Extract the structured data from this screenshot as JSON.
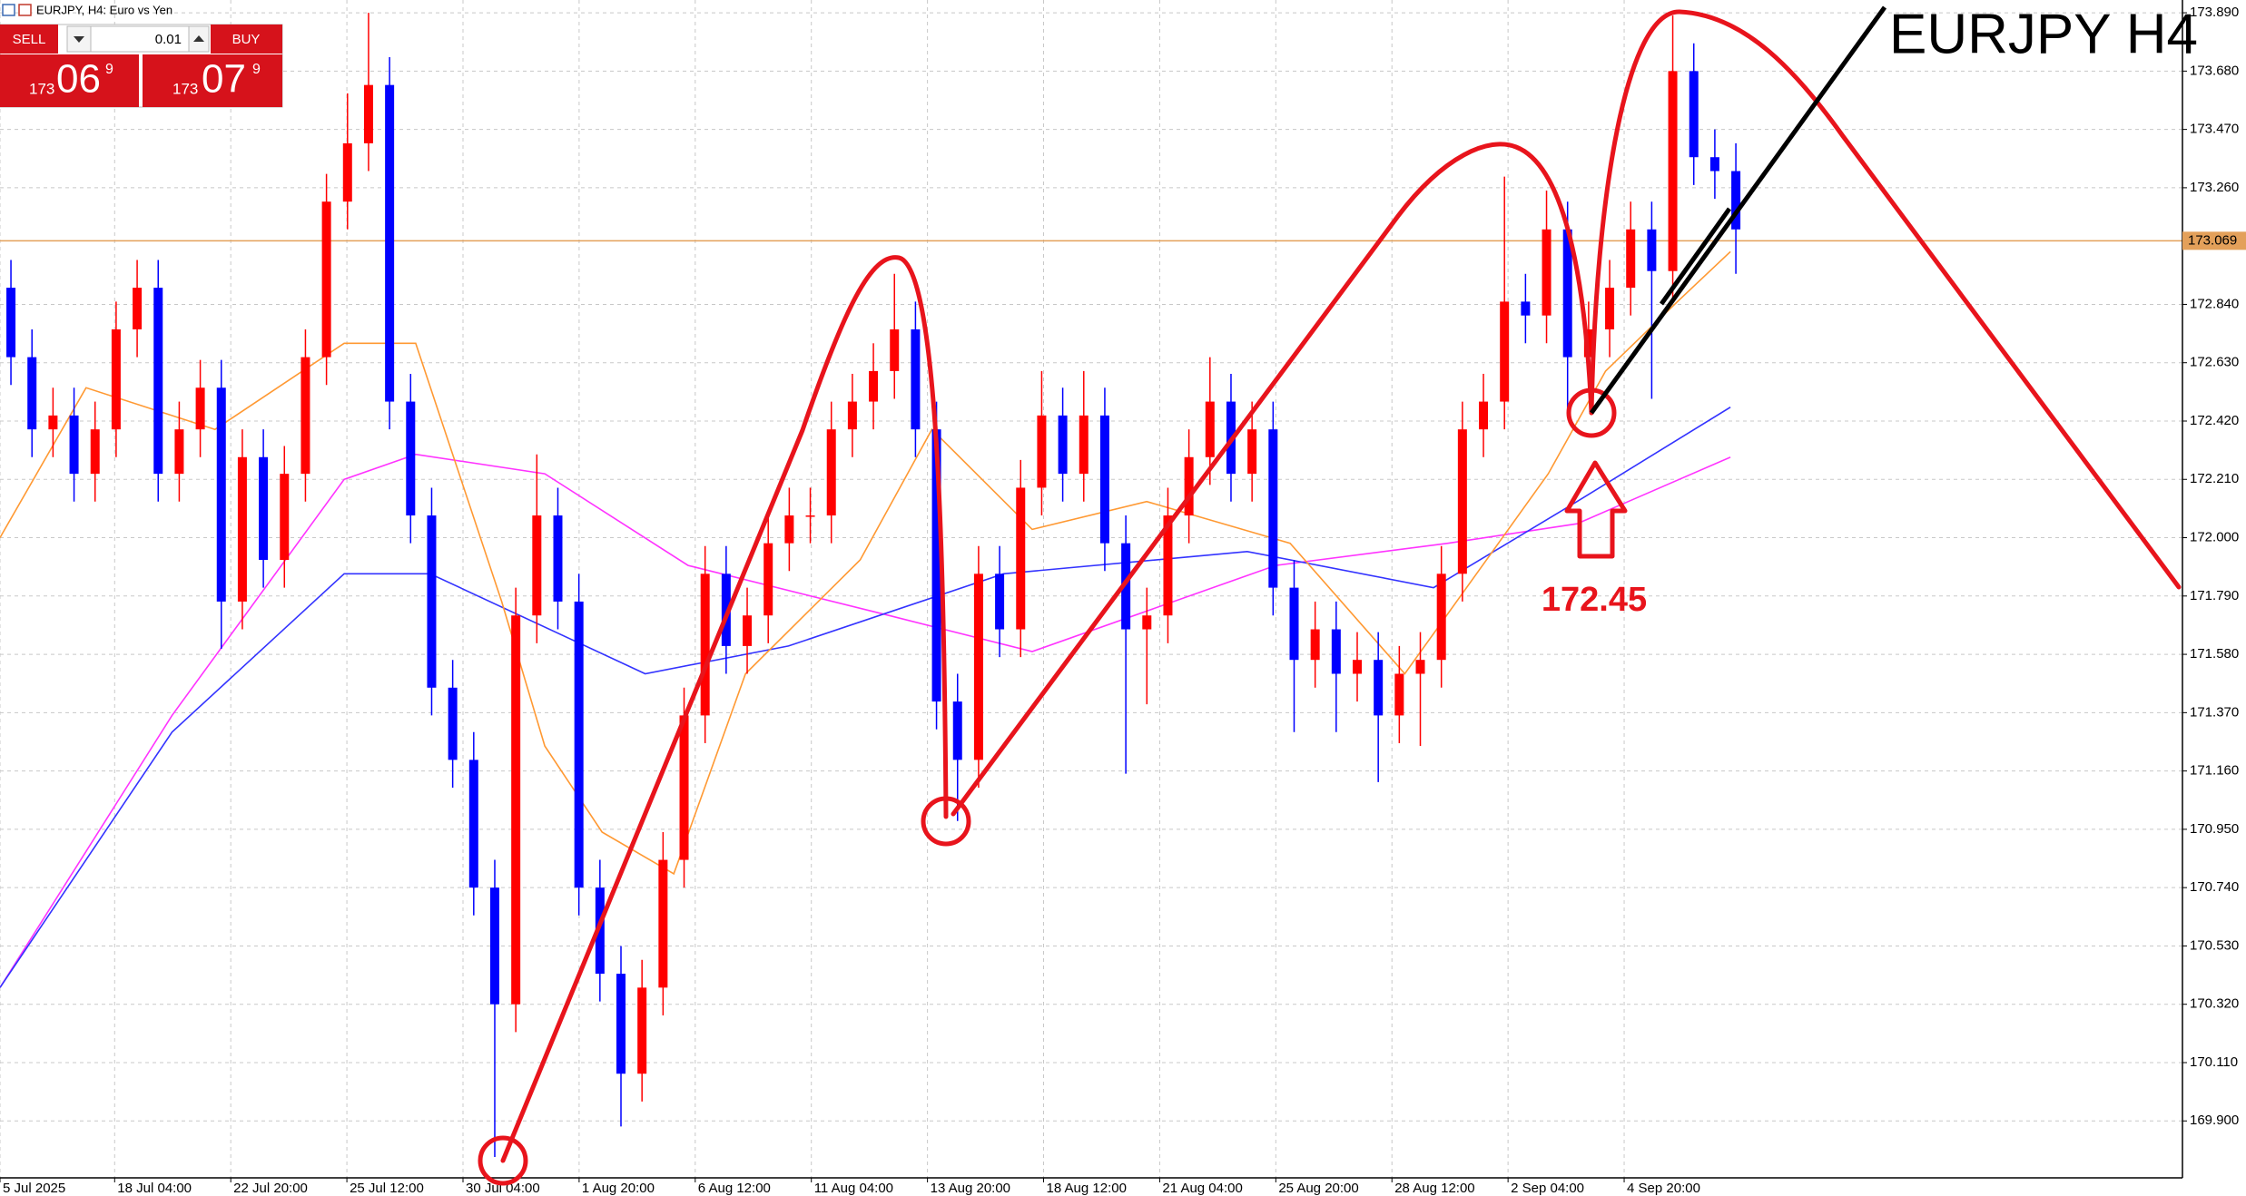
{
  "header": {
    "symbol_label": "EURJPY, H4:  Euro vs Yen"
  },
  "trade_panel": {
    "sell": "SELL",
    "lot": "0.01",
    "buy": "BUY",
    "sell_price": {
      "big": "173",
      "main": "06",
      "small": "9"
    },
    "buy_price": {
      "big": "173",
      "main": "07",
      "small": "9"
    }
  },
  "chart_data": {
    "type": "candlestick",
    "title": "EURJPY H4",
    "annotations": [
      {
        "text": "172.45"
      }
    ],
    "up_color": "#ff0000",
    "down_color": "#0000ff",
    "grid": true,
    "xlim": [
      -0.52,
      103.23
    ],
    "ylim": [
      169.695,
      173.936
    ],
    "xticks": [
      {
        "value": -0.52,
        "label": "5 Jul 2025"
      },
      {
        "value": 4.93,
        "label": "18 Jul 04:00"
      },
      {
        "value": 10.45,
        "label": "22 Jul 20:00"
      },
      {
        "value": 15.97,
        "label": "25 Jul 12:00"
      },
      {
        "value": 21.49,
        "label": "30 Jul 04:00"
      },
      {
        "value": 27.01,
        "label": "1 Aug 20:00"
      },
      {
        "value": 32.53,
        "label": "6 Aug 12:00"
      },
      {
        "value": 38.05,
        "label": "11 Aug 04:00"
      },
      {
        "value": 43.57,
        "label": "13 Aug 20:00"
      },
      {
        "value": 49.09,
        "label": "18 Aug 12:00"
      },
      {
        "value": 54.61,
        "label": "21 Aug 04:00"
      },
      {
        "value": 60.13,
        "label": "25 Aug 20:00"
      },
      {
        "value": 65.65,
        "label": "28 Aug 12:00"
      },
      {
        "value": 71.17,
        "label": "2 Sep 04:00"
      },
      {
        "value": 76.69,
        "label": "4 Sep 20:00"
      }
    ],
    "yticks": [
      {
        "value": 169.9,
        "label": "169.900"
      },
      {
        "value": 170.11,
        "label": "170.110"
      },
      {
        "value": 170.32,
        "label": "170.320"
      },
      {
        "value": 170.53,
        "label": "170.530"
      },
      {
        "value": 170.74,
        "label": "170.740"
      },
      {
        "value": 170.95,
        "label": "170.950"
      },
      {
        "value": 171.16,
        "label": "171.160"
      },
      {
        "value": 171.37,
        "label": "171.370"
      },
      {
        "value": 171.58,
        "label": "171.580"
      },
      {
        "value": 171.79,
        "label": "171.790"
      },
      {
        "value": 172.0,
        "label": "172.000"
      },
      {
        "value": 172.21,
        "label": "172.210"
      },
      {
        "value": 172.42,
        "label": "172.420"
      },
      {
        "value": 172.63,
        "label": "172.630"
      },
      {
        "value": 172.84,
        "label": "172.840"
      },
      {
        "value": 173.26,
        "label": "173.260"
      },
      {
        "value": 173.47,
        "label": "173.470"
      },
      {
        "value": 173.68,
        "label": "173.680"
      },
      {
        "value": 173.89,
        "label": "173.890"
      }
    ],
    "price_line": {
      "value": 173.069,
      "label": "173.069",
      "color": "#e3a05a"
    },
    "x": [
      0,
      1,
      2,
      3,
      4,
      5,
      6,
      7,
      8,
      9,
      10,
      11,
      12,
      13,
      14,
      15,
      16,
      17,
      18,
      19,
      20,
      21,
      22,
      23,
      24,
      25,
      26,
      27,
      28,
      29,
      30,
      31,
      32,
      33,
      34,
      35,
      36,
      37,
      38,
      39,
      40,
      41,
      42,
      43,
      44,
      45,
      46,
      47,
      48,
      49,
      50,
      51,
      52,
      53,
      54,
      55,
      56,
      57,
      58,
      59,
      60,
      61,
      62,
      63,
      64,
      65,
      66,
      67,
      68,
      69,
      70,
      71,
      72,
      73,
      74,
      75,
      76,
      77,
      78,
      79,
      80,
      81,
      82
    ],
    "open": [
      172.9,
      172.65,
      172.39,
      172.44,
      172.23,
      172.39,
      172.75,
      172.9,
      172.23,
      172.39,
      172.54,
      171.77,
      172.29,
      171.92,
      172.23,
      172.65,
      173.21,
      173.42,
      173.63,
      172.49,
      172.08,
      171.46,
      171.2,
      170.74,
      170.32,
      171.72,
      172.08,
      171.77,
      170.74,
      170.43,
      170.07,
      170.38,
      170.84,
      171.36,
      171.87,
      171.61,
      171.72,
      171.98,
      172.08,
      172.08,
      172.39,
      172.49,
      172.6,
      172.75,
      172.39,
      171.41,
      171.2,
      171.87,
      171.67,
      172.18,
      172.44,
      172.23,
      172.44,
      171.98,
      171.67,
      171.72,
      172.08,
      172.29,
      172.49,
      172.23,
      172.39,
      171.82,
      171.56,
      171.67,
      171.51,
      171.56,
      171.36,
      171.51,
      171.56,
      171.87,
      172.39,
      172.49,
      172.85,
      172.8,
      173.11,
      172.65,
      172.75,
      172.9,
      173.11,
      172.96,
      173.68,
      173.37,
      173.32
    ],
    "high": [
      173.0,
      172.75,
      172.54,
      172.54,
      172.49,
      172.85,
      173.0,
      173.0,
      172.49,
      172.64,
      172.64,
      172.39,
      172.39,
      172.33,
      172.75,
      173.31,
      173.6,
      173.89,
      173.73,
      172.59,
      172.18,
      171.56,
      171.3,
      170.84,
      171.82,
      172.3,
      172.18,
      171.87,
      170.84,
      170.53,
      170.48,
      170.94,
      171.46,
      171.97,
      171.97,
      171.82,
      172.08,
      172.18,
      172.18,
      172.49,
      172.59,
      172.7,
      172.95,
      172.85,
      172.49,
      171.51,
      171.97,
      171.97,
      172.28,
      172.6,
      172.54,
      172.6,
      172.54,
      172.08,
      171.82,
      172.18,
      172.39,
      172.65,
      172.59,
      172.49,
      172.49,
      171.92,
      171.77,
      171.77,
      171.66,
      171.66,
      171.61,
      171.66,
      171.97,
      172.49,
      172.59,
      173.3,
      172.95,
      173.25,
      173.21,
      172.85,
      173.0,
      173.21,
      173.21,
      173.88,
      173.78,
      173.47,
      173.42
    ],
    "low": [
      172.55,
      172.29,
      172.29,
      172.13,
      172.13,
      172.29,
      172.65,
      172.13,
      172.13,
      172.29,
      171.6,
      171.67,
      171.82,
      171.82,
      172.13,
      172.55,
      173.11,
      173.32,
      172.39,
      171.98,
      171.36,
      171.1,
      170.64,
      169.77,
      170.22,
      171.62,
      171.67,
      170.64,
      170.33,
      169.88,
      169.97,
      170.28,
      170.74,
      171.26,
      171.51,
      171.51,
      171.62,
      171.88,
      171.98,
      171.98,
      172.29,
      172.39,
      172.5,
      172.29,
      171.31,
      170.98,
      171.1,
      171.57,
      171.57,
      172.08,
      172.13,
      172.13,
      171.88,
      171.15,
      171.4,
      171.62,
      171.98,
      172.19,
      172.13,
      172.13,
      171.72,
      171.3,
      171.46,
      171.3,
      171.41,
      171.12,
      171.26,
      171.25,
      171.46,
      171.77,
      172.29,
      172.39,
      172.7,
      172.7,
      172.45,
      172.55,
      172.65,
      172.8,
      172.5,
      172.86,
      173.27,
      173.22,
      172.95
    ],
    "close": [
      172.65,
      172.39,
      172.44,
      172.23,
      172.39,
      172.75,
      172.9,
      172.23,
      172.39,
      172.54,
      171.77,
      172.29,
      171.92,
      172.23,
      172.65,
      173.21,
      173.42,
      173.63,
      172.49,
      172.08,
      171.46,
      171.2,
      170.74,
      170.32,
      171.72,
      172.08,
      171.77,
      170.74,
      170.43,
      170.07,
      170.38,
      170.84,
      171.36,
      171.87,
      171.61,
      171.72,
      171.98,
      172.08,
      172.08,
      172.39,
      172.49,
      172.6,
      172.75,
      172.39,
      171.41,
      171.2,
      171.87,
      171.67,
      172.18,
      172.44,
      172.23,
      172.44,
      171.98,
      171.67,
      171.72,
      172.08,
      172.29,
      172.49,
      172.23,
      172.39,
      171.82,
      171.56,
      171.67,
      171.51,
      171.56,
      171.36,
      171.51,
      171.56,
      171.87,
      172.39,
      172.49,
      172.85,
      172.8,
      173.11,
      172.65,
      172.75,
      172.9,
      173.11,
      172.96,
      173.68,
      173.37,
      173.32,
      173.11
    ],
    "indicators": [
      {
        "color": "#ff33ff",
        "x": [
          -0.52,
          7.66,
          15.84,
          19.24,
          25.38,
          32.19,
          41.73,
          48.55,
          60.13,
          68.31,
          74.45,
          81.74
        ],
        "values": [
          170.38,
          171.36,
          172.21,
          172.3,
          172.23,
          171.9,
          171.72,
          171.59,
          171.9,
          171.98,
          172.05,
          172.29
        ]
      },
      {
        "color": "#3333ff",
        "x": [
          -0.52,
          7.66,
          15.84,
          19.93,
          30.15,
          36.96,
          47.19,
          58.77,
          67.63,
          74.45,
          81.74
        ],
        "values": [
          170.38,
          171.3,
          171.87,
          171.87,
          171.51,
          171.61,
          171.87,
          171.95,
          171.82,
          172.13,
          172.47
        ]
      },
      {
        "color": "#ff9933",
        "x": [
          -0.52,
          3.57,
          9.7,
          15.84,
          19.24,
          23.33,
          25.38,
          28.1,
          31.51,
          34.92,
          40.37,
          43.78,
          48.55,
          53.99,
          60.81,
          66.26,
          69.67,
          73.08,
          75.81,
          79.22,
          81.74
        ],
        "values": [
          172.0,
          172.54,
          172.39,
          172.7,
          172.7,
          171.77,
          171.25,
          170.94,
          170.79,
          171.51,
          171.92,
          172.39,
          172.03,
          172.13,
          171.98,
          171.51,
          171.87,
          172.23,
          172.6,
          172.85,
          173.03
        ]
      }
    ]
  }
}
